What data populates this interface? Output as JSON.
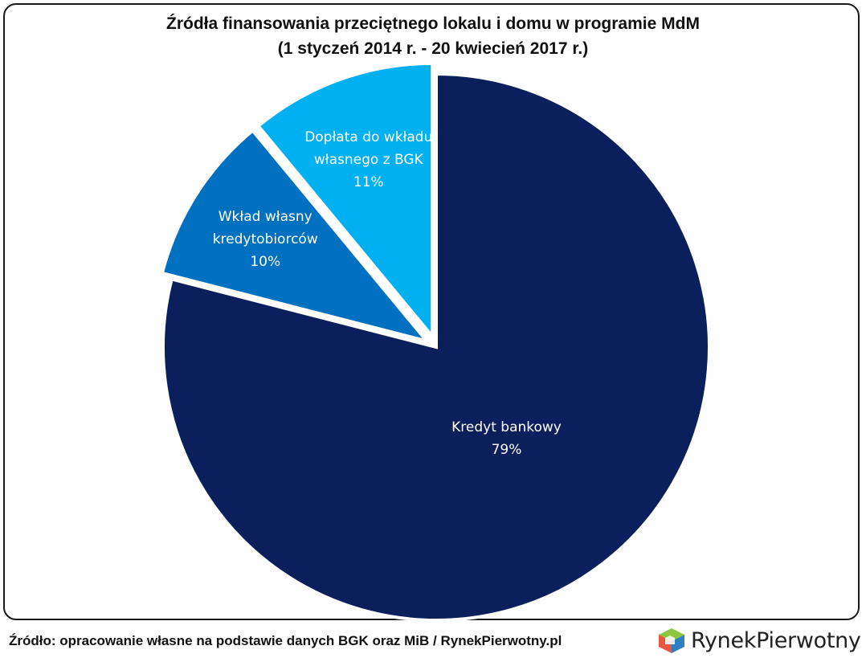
{
  "chart_data": {
    "type": "pie",
    "title": "Źródła finansowania przeciętnego lokalu i domu w programie MdM",
    "subtitle": "(1 styczeń 2014 r. - 20 kwiecień 2017 r.)",
    "slices": [
      {
        "label_lines": [
          "Kredyt bankowy"
        ],
        "value": 79,
        "value_label": "79%",
        "color": "#0b1f5c"
      },
      {
        "label_lines": [
          "Wkład własny",
          "kredytobiorców"
        ],
        "value": 10,
        "value_label": "10%",
        "color": "#0070c0"
      },
      {
        "label_lines": [
          "Dopłata do wkładu",
          "własnego z BGK"
        ],
        "value": 11,
        "value_label": "11%",
        "color": "#00b0f0"
      }
    ]
  },
  "footer": {
    "source": "Źródło: opracowanie własne na podstawie danych BGK oraz MiB / RynekPierwotny.pl",
    "logo_text": "RynekPierwotny",
    "logo_icon": "house-cube-icon"
  }
}
